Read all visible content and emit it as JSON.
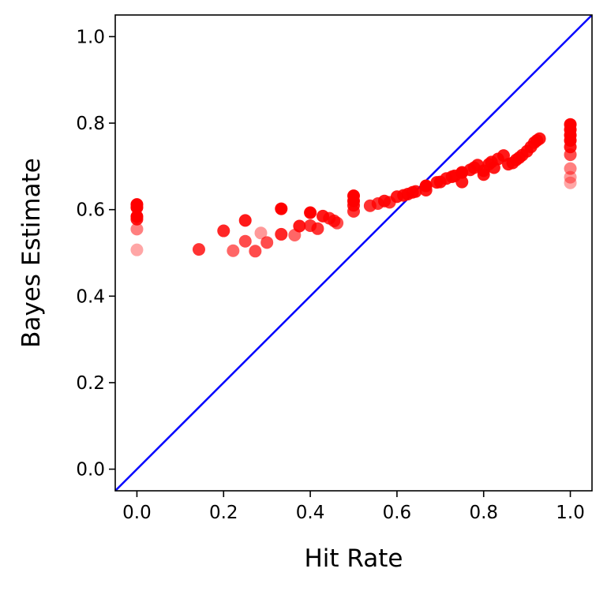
{
  "chart_data": {
    "type": "scatter",
    "title": "",
    "xlabel": "Hit Rate",
    "ylabel": "Bayes Estimate",
    "xlim": [
      -0.05,
      1.05
    ],
    "ylim": [
      -0.05,
      1.05
    ],
    "xticks": [
      0.0,
      0.2,
      0.4,
      0.6,
      0.8,
      1.0
    ],
    "yticks": [
      0.0,
      0.2,
      0.4,
      0.6,
      0.8,
      1.0
    ],
    "xtick_labels": [
      "0.0",
      "0.2",
      "0.4",
      "0.6",
      "0.8",
      "1.0"
    ],
    "ytick_labels": [
      "0.0",
      "0.2",
      "0.4",
      "0.6",
      "0.8",
      "1.0"
    ],
    "grid": false,
    "point_color": "#ff0000",
    "reference_line": {
      "type": "identity",
      "color": "#0000ff"
    },
    "points": [
      {
        "x": 0.0,
        "y": 0.612,
        "a": 1.0
      },
      {
        "x": 0.0,
        "y": 0.605,
        "a": 1.0
      },
      {
        "x": 0.0,
        "y": 0.584,
        "a": 1.0
      },
      {
        "x": 0.0,
        "y": 0.578,
        "a": 0.9
      },
      {
        "x": 0.0,
        "y": 0.555,
        "a": 0.5
      },
      {
        "x": 0.0,
        "y": 0.507,
        "a": 0.35
      },
      {
        "x": 0.143,
        "y": 0.508,
        "a": 0.8
      },
      {
        "x": 0.2,
        "y": 0.551,
        "a": 0.85
      },
      {
        "x": 0.222,
        "y": 0.505,
        "a": 0.6
      },
      {
        "x": 0.25,
        "y": 0.575,
        "a": 0.9
      },
      {
        "x": 0.25,
        "y": 0.527,
        "a": 0.7
      },
      {
        "x": 0.273,
        "y": 0.504,
        "a": 0.7
      },
      {
        "x": 0.286,
        "y": 0.546,
        "a": 0.4
      },
      {
        "x": 0.3,
        "y": 0.524,
        "a": 0.7
      },
      {
        "x": 0.333,
        "y": 0.602,
        "a": 1.0
      },
      {
        "x": 0.333,
        "y": 0.543,
        "a": 0.85
      },
      {
        "x": 0.364,
        "y": 0.541,
        "a": 0.6
      },
      {
        "x": 0.375,
        "y": 0.562,
        "a": 0.9
      },
      {
        "x": 0.4,
        "y": 0.593,
        "a": 1.0
      },
      {
        "x": 0.4,
        "y": 0.563,
        "a": 0.8
      },
      {
        "x": 0.417,
        "y": 0.556,
        "a": 0.8
      },
      {
        "x": 0.429,
        "y": 0.585,
        "a": 0.9
      },
      {
        "x": 0.444,
        "y": 0.58,
        "a": 0.8
      },
      {
        "x": 0.455,
        "y": 0.574,
        "a": 0.8
      },
      {
        "x": 0.462,
        "y": 0.569,
        "a": 0.7
      },
      {
        "x": 0.5,
        "y": 0.632,
        "a": 1.0
      },
      {
        "x": 0.5,
        "y": 0.62,
        "a": 1.0
      },
      {
        "x": 0.5,
        "y": 0.61,
        "a": 0.9
      },
      {
        "x": 0.5,
        "y": 0.596,
        "a": 0.8
      },
      {
        "x": 0.538,
        "y": 0.609,
        "a": 0.8
      },
      {
        "x": 0.556,
        "y": 0.614,
        "a": 0.8
      },
      {
        "x": 0.571,
        "y": 0.62,
        "a": 0.9
      },
      {
        "x": 0.583,
        "y": 0.617,
        "a": 0.8
      },
      {
        "x": 0.6,
        "y": 0.63,
        "a": 0.9
      },
      {
        "x": 0.615,
        "y": 0.633,
        "a": 0.9
      },
      {
        "x": 0.625,
        "y": 0.636,
        "a": 0.9
      },
      {
        "x": 0.636,
        "y": 0.64,
        "a": 0.9
      },
      {
        "x": 0.643,
        "y": 0.642,
        "a": 0.9
      },
      {
        "x": 0.667,
        "y": 0.655,
        "a": 1.0
      },
      {
        "x": 0.667,
        "y": 0.645,
        "a": 0.9
      },
      {
        "x": 0.692,
        "y": 0.663,
        "a": 0.9
      },
      {
        "x": 0.7,
        "y": 0.664,
        "a": 0.9
      },
      {
        "x": 0.714,
        "y": 0.672,
        "a": 0.9
      },
      {
        "x": 0.727,
        "y": 0.676,
        "a": 0.9
      },
      {
        "x": 0.733,
        "y": 0.678,
        "a": 0.9
      },
      {
        "x": 0.75,
        "y": 0.686,
        "a": 1.0
      },
      {
        "x": 0.75,
        "y": 0.664,
        "a": 0.9
      },
      {
        "x": 0.769,
        "y": 0.692,
        "a": 0.9
      },
      {
        "x": 0.778,
        "y": 0.697,
        "a": 0.9
      },
      {
        "x": 0.786,
        "y": 0.703,
        "a": 0.9
      },
      {
        "x": 0.8,
        "y": 0.69,
        "a": 0.9
      },
      {
        "x": 0.8,
        "y": 0.681,
        "a": 0.9
      },
      {
        "x": 0.812,
        "y": 0.705,
        "a": 0.9
      },
      {
        "x": 0.818,
        "y": 0.71,
        "a": 0.9
      },
      {
        "x": 0.824,
        "y": 0.697,
        "a": 0.9
      },
      {
        "x": 0.833,
        "y": 0.717,
        "a": 0.9
      },
      {
        "x": 0.846,
        "y": 0.725,
        "a": 0.9
      },
      {
        "x": 0.857,
        "y": 0.705,
        "a": 0.9
      },
      {
        "x": 0.867,
        "y": 0.708,
        "a": 0.9
      },
      {
        "x": 0.875,
        "y": 0.715,
        "a": 0.9
      },
      {
        "x": 0.882,
        "y": 0.72,
        "a": 0.9
      },
      {
        "x": 0.889,
        "y": 0.726,
        "a": 0.9
      },
      {
        "x": 0.9,
        "y": 0.735,
        "a": 0.9
      },
      {
        "x": 0.909,
        "y": 0.745,
        "a": 0.9
      },
      {
        "x": 0.917,
        "y": 0.755,
        "a": 0.9
      },
      {
        "x": 0.923,
        "y": 0.76,
        "a": 0.9
      },
      {
        "x": 0.929,
        "y": 0.764,
        "a": 0.9
      },
      {
        "x": 1.0,
        "y": 0.797,
        "a": 1.0
      },
      {
        "x": 1.0,
        "y": 0.785,
        "a": 1.0
      },
      {
        "x": 1.0,
        "y": 0.772,
        "a": 1.0
      },
      {
        "x": 1.0,
        "y": 0.76,
        "a": 1.0
      },
      {
        "x": 1.0,
        "y": 0.745,
        "a": 0.9
      },
      {
        "x": 1.0,
        "y": 0.727,
        "a": 0.7
      },
      {
        "x": 1.0,
        "y": 0.695,
        "a": 0.5
      },
      {
        "x": 1.0,
        "y": 0.675,
        "a": 0.4
      },
      {
        "x": 1.0,
        "y": 0.662,
        "a": 0.35
      }
    ]
  }
}
